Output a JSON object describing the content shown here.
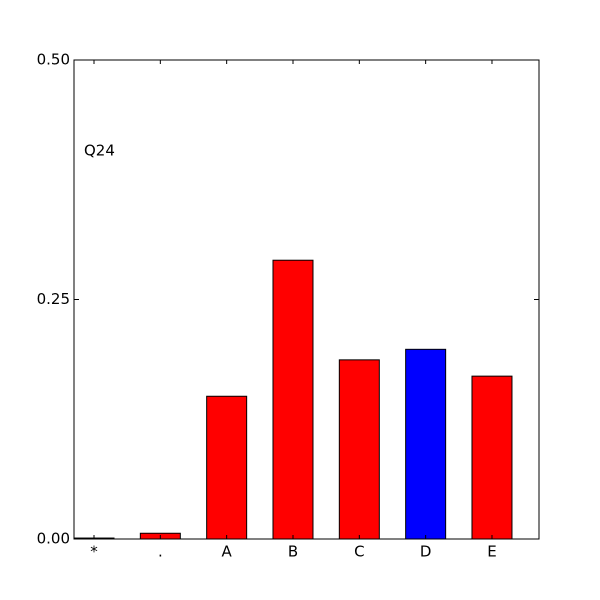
{
  "chart_data": {
    "type": "bar",
    "annotation": "Q24",
    "categories": [
      "*",
      ".",
      "A",
      "B",
      "C",
      "D",
      "E"
    ],
    "values": [
      0.001,
      0.006,
      0.149,
      0.291,
      0.187,
      0.198,
      0.17
    ],
    "colors": [
      "#ff0000",
      "#ff0000",
      "#ff0000",
      "#ff0000",
      "#ff0000",
      "#0000ff",
      "#ff0000"
    ],
    "ylim": [
      0,
      0.5
    ],
    "yticks": [
      {
        "value": 0,
        "label": "0.00"
      },
      {
        "value": 0.25,
        "label": "0.25"
      },
      {
        "value": 0.5,
        "label": "0.50"
      }
    ]
  }
}
